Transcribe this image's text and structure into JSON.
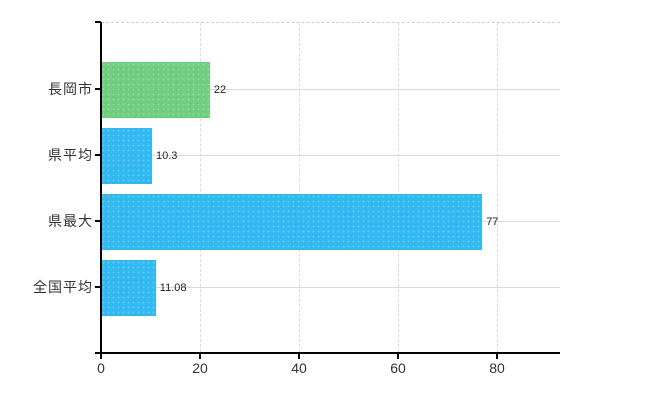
{
  "chart_data": {
    "type": "bar",
    "orientation": "horizontal",
    "title": "",
    "categories": [
      "長岡市",
      "県平均",
      "県最大",
      "全国平均"
    ],
    "values": [
      22,
      10.3,
      77,
      11.08
    ],
    "value_labels": [
      "22",
      "10.3",
      "77",
      "11.08"
    ],
    "series": [
      {
        "name": "value",
        "values": [
          22,
          10.3,
          77,
          11.08
        ]
      }
    ],
    "bar_colors": [
      "#71ce7f",
      "#33b9f2",
      "#33b9f2",
      "#33b9f2"
    ],
    "x_ticks": [
      "0",
      "20",
      "40",
      "60",
      "80"
    ],
    "x_tick_values": [
      0,
      20,
      40,
      60,
      80
    ],
    "xlim": [
      0,
      92.7
    ],
    "grid": true,
    "legend": false
  },
  "colors": {
    "green_bar": "#71ce7f",
    "blue_bar": "#33b9f2",
    "horizontal_gridline": "#d4ddd4",
    "vertical_gridline": "#d9d9d9",
    "axis_line": "#000000",
    "label_text": "#333333",
    "background": "#ffffff"
  }
}
